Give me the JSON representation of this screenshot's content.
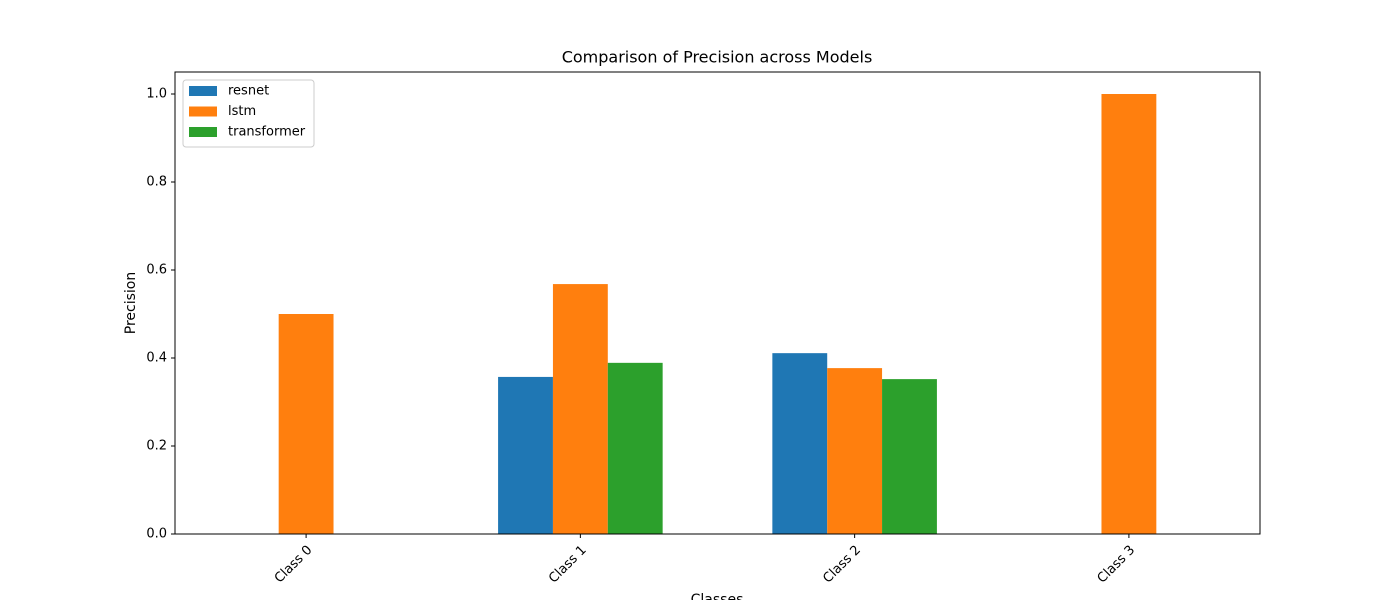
{
  "chart_data": {
    "type": "bar",
    "title": "Comparison of Precision across Models",
    "x_label": "Classes",
    "y_label": "Precision",
    "categories": [
      "Class 0",
      "Class 1",
      "Class 2",
      "Class 3"
    ],
    "series": [
      {
        "name": "resnet",
        "color": "#1f77b4",
        "values": [
          0,
          0.357,
          0.411,
          0
        ]
      },
      {
        "name": "lstm",
        "color": "#ff7f0e",
        "values": [
          0.5,
          0.568,
          0.377,
          1.0
        ]
      },
      {
        "name": "transformer",
        "color": "#2ca02c",
        "values": [
          0,
          0.389,
          0.352,
          0
        ]
      }
    ],
    "ylim": [
      0,
      1.05
    ],
    "yticks": [
      {
        "value": 0,
        "label": "0.0"
      },
      {
        "value": 0.2,
        "label": "0.2"
      },
      {
        "value": 0.4,
        "label": "0.4"
      },
      {
        "value": 0.6,
        "label": "0.6"
      },
      {
        "value": 0.8,
        "label": "0.8"
      },
      {
        "value": 1.0,
        "label": "1.0"
      }
    ],
    "legend": "upper left",
    "grid": false
  }
}
